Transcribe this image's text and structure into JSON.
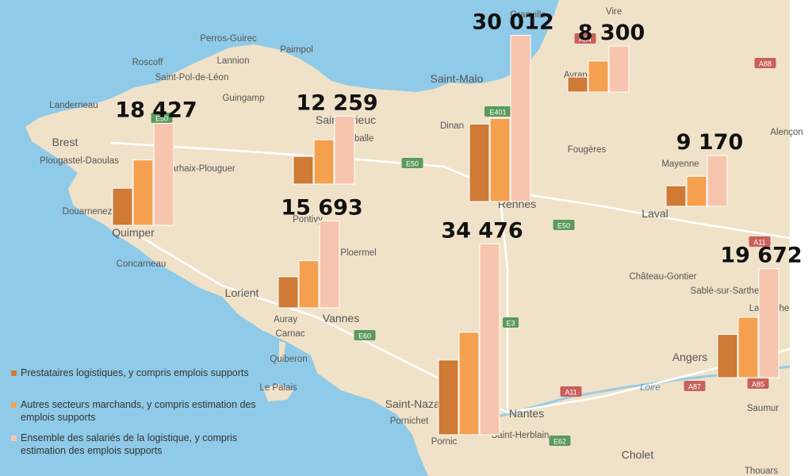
{
  "colors": {
    "sea": "#8fcbe8",
    "land": "#f0e2c8",
    "prestataires": "#cf7a35",
    "autres": "#f5a04e",
    "ensemble": "#f7c5ad",
    "road_shield": "#5b9a5d",
    "road_shield_red": "#c8615c"
  },
  "map": {
    "labels": [
      {
        "text": "Perros-Guirec",
        "kind": "town"
      },
      {
        "text": "Lannion",
        "kind": "town"
      },
      {
        "text": "Paimpol",
        "kind": "town"
      },
      {
        "text": "Roscoff",
        "kind": "town"
      },
      {
        "text": "Saint-Pol-de-Léon",
        "kind": "town"
      },
      {
        "text": "Guingamp",
        "kind": "town"
      },
      {
        "text": "Landerneau",
        "kind": "town"
      },
      {
        "text": "Brest",
        "kind": "city"
      },
      {
        "text": "Plougastel-Daoulas",
        "kind": "town"
      },
      {
        "text": "Carhaix-Plouguer",
        "kind": "town"
      },
      {
        "text": "Douarnenez",
        "kind": "town"
      },
      {
        "text": "Quimper",
        "kind": "city"
      },
      {
        "text": "Concarneau",
        "kind": "town"
      },
      {
        "text": "Lorient",
        "kind": "city"
      },
      {
        "text": "Saint-Brieuc",
        "kind": "city"
      },
      {
        "text": "Lamballe",
        "kind": "town"
      },
      {
        "text": "Pontivy",
        "kind": "town"
      },
      {
        "text": "Ploermel",
        "kind": "town"
      },
      {
        "text": "Auray",
        "kind": "town"
      },
      {
        "text": "Vannes",
        "kind": "city"
      },
      {
        "text": "Carnac",
        "kind": "town"
      },
      {
        "text": "Quiberon",
        "kind": "town"
      },
      {
        "text": "Le Palais",
        "kind": "town"
      },
      {
        "text": "Saint-Malo",
        "kind": "city"
      },
      {
        "text": "Dinan",
        "kind": "town"
      },
      {
        "text": "Rennes",
        "kind": "city"
      },
      {
        "text": "Granville",
        "kind": "town"
      },
      {
        "text": "Avranches",
        "kind": "town"
      },
      {
        "text": "Vire",
        "kind": "town"
      },
      {
        "text": "Fougères",
        "kind": "town"
      },
      {
        "text": "Mayenne",
        "kind": "town"
      },
      {
        "text": "Laval",
        "kind": "city"
      },
      {
        "text": "Château-Gontier",
        "kind": "town"
      },
      {
        "text": "Sablé-sur-Sarthe",
        "kind": "town"
      },
      {
        "text": "La Flèche",
        "kind": "town"
      },
      {
        "text": "Angers",
        "kind": "city"
      },
      {
        "text": "Saumur",
        "kind": "town"
      },
      {
        "text": "Cholet",
        "kind": "city"
      },
      {
        "text": "Nantes",
        "kind": "city"
      },
      {
        "text": "Saint-Nazaire",
        "kind": "city"
      },
      {
        "text": "Pornichet",
        "kind": "town"
      },
      {
        "text": "Pornic",
        "kind": "town"
      },
      {
        "text": "Saint-Herblain",
        "kind": "town"
      },
      {
        "text": "Loire",
        "kind": "river"
      },
      {
        "text": "Thouars",
        "kind": "town"
      },
      {
        "text": "Alençon",
        "kind": "town"
      }
    ],
    "road_shields": [
      {
        "text": "E50",
        "red": false
      },
      {
        "text": "E50",
        "red": false
      },
      {
        "text": "E401",
        "red": false
      },
      {
        "text": "E50",
        "red": false
      },
      {
        "text": "E3",
        "red": false
      },
      {
        "text": "E60",
        "red": false
      },
      {
        "text": "E62",
        "red": false
      },
      {
        "text": "A84",
        "red": true
      },
      {
        "text": "A88",
        "red": true
      },
      {
        "text": "A11",
        "red": true
      },
      {
        "text": "A11",
        "red": true
      },
      {
        "text": "A87",
        "red": true
      },
      {
        "text": "A85",
        "red": true
      }
    ]
  },
  "chart_data": {
    "type": "bar",
    "series": [
      {
        "name": "Prestataires logistiques, y compris emplois supports"
      },
      {
        "name": "Autres secteurs marchands, y compris estimation des emplois supports"
      },
      {
        "name": "Ensemble des salariés de la logistique, y compris estimation des emplois supports"
      }
    ],
    "groups": [
      {
        "total_label": "18 427",
        "values": [
          6700,
          11800,
          18427
        ]
      },
      {
        "total_label": "12 259",
        "values": [
          5000,
          8000,
          12259
        ]
      },
      {
        "total_label": "30 012",
        "values": [
          14000,
          15000,
          30012
        ]
      },
      {
        "total_label": "8 300",
        "values": [
          2700,
          5600,
          8300
        ]
      },
      {
        "total_label": "9 170",
        "values": [
          3700,
          5400,
          9170
        ]
      },
      {
        "total_label": "15 693",
        "values": [
          5600,
          8500,
          15693
        ]
      },
      {
        "total_label": "34 476",
        "values": [
          13500,
          18500,
          34476
        ]
      },
      {
        "total_label": "19 672",
        "values": [
          7800,
          10900,
          19672
        ]
      }
    ],
    "legend": "bottom-left"
  }
}
